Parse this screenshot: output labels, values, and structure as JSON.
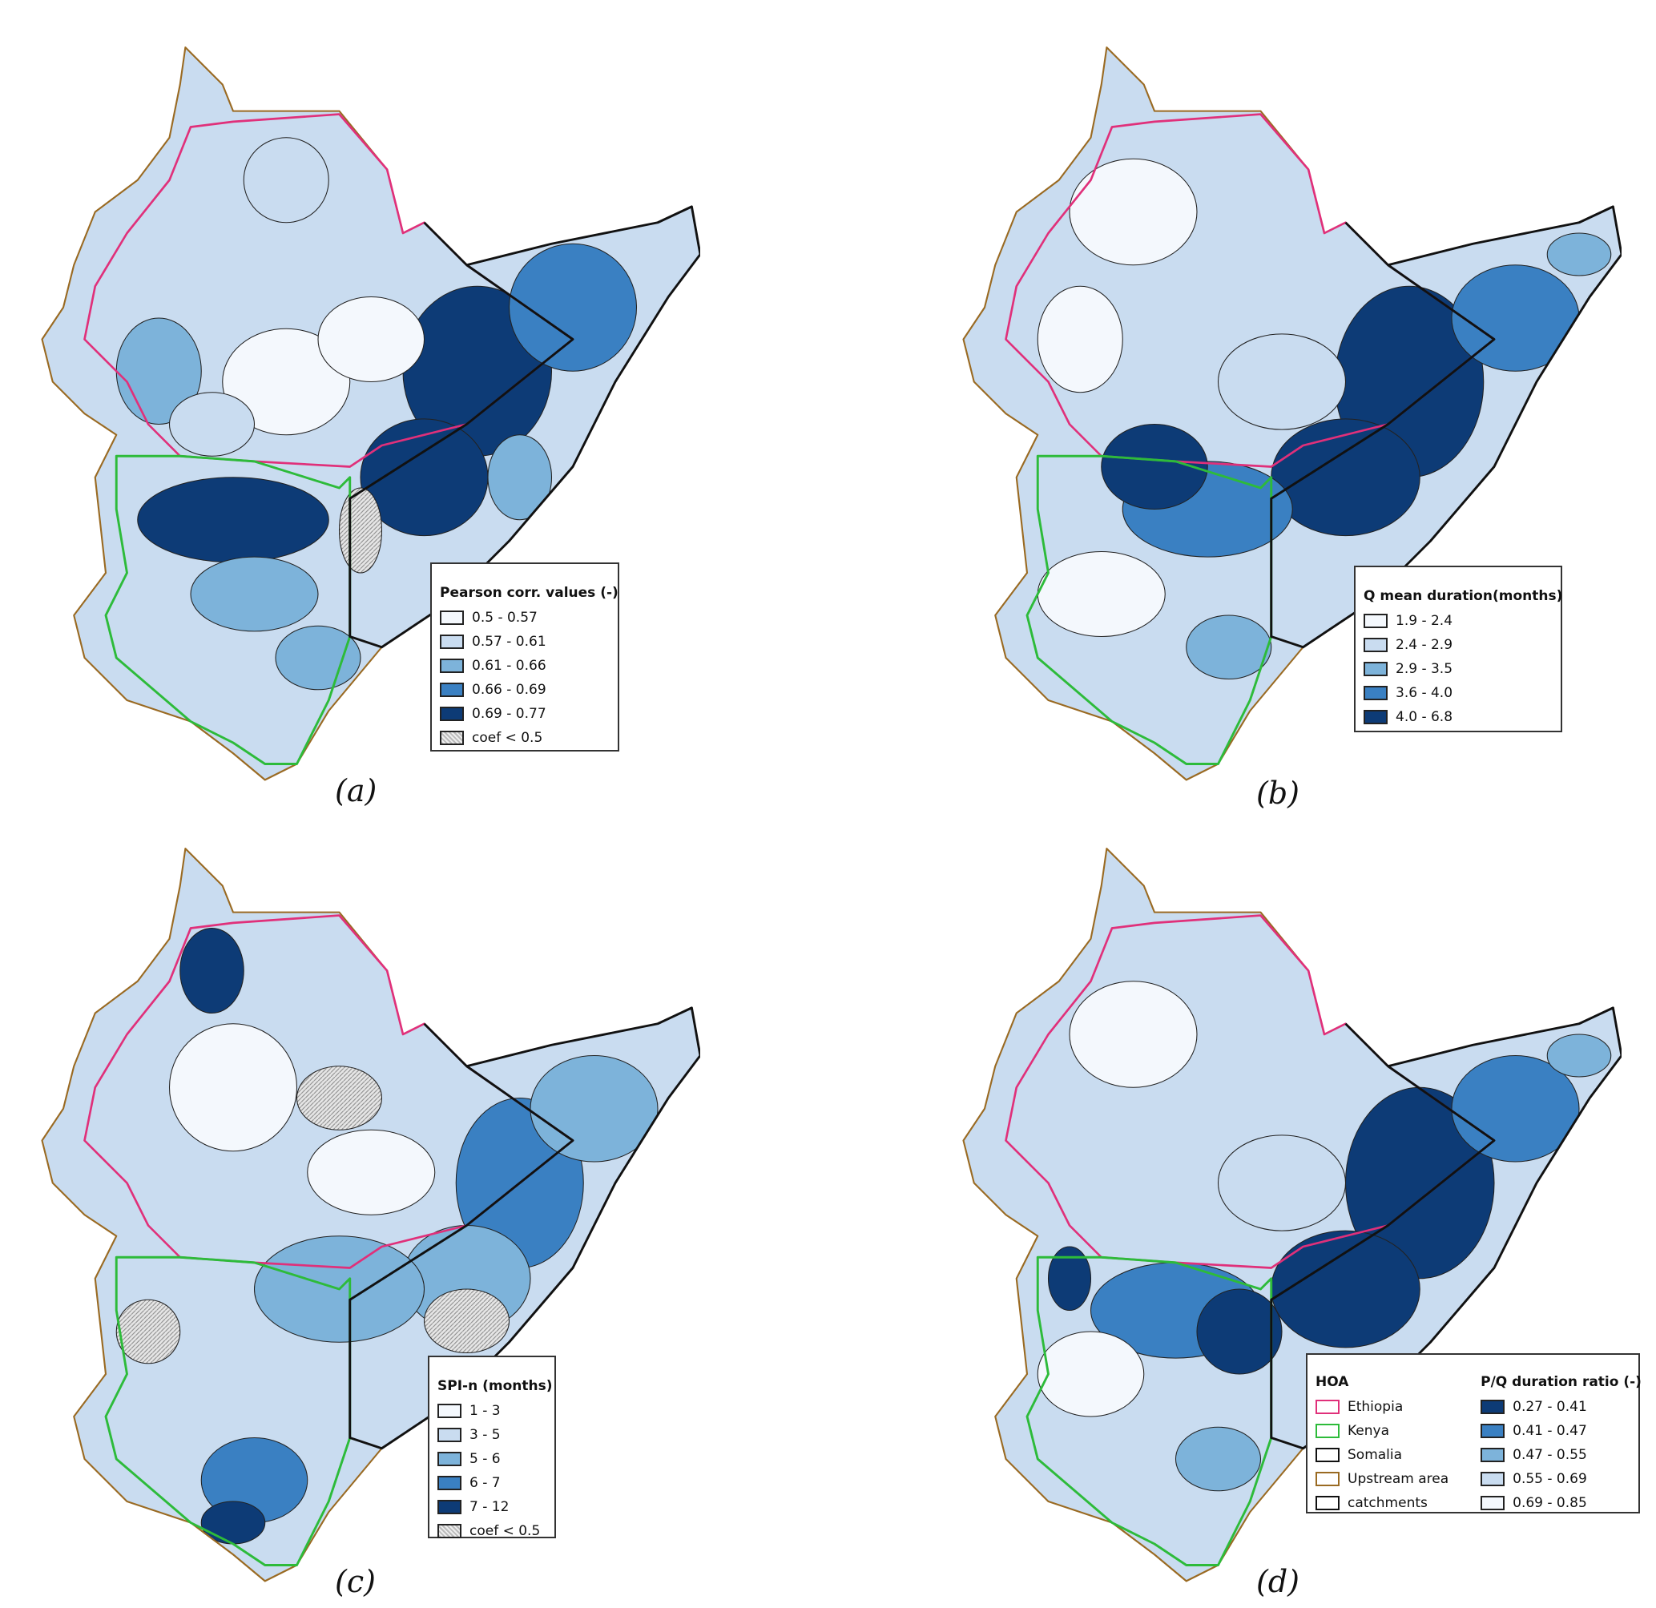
{
  "panels": [
    {
      "caption": "(a)",
      "legend_title": "Pearson corr. values (-)",
      "classes": [
        {
          "label": "0.5 - 0.57",
          "color": "#f4f8fd"
        },
        {
          "label": "0.57 - 0.61",
          "color": "#c9dcf0"
        },
        {
          "label": "0.61 - 0.66",
          "color": "#7db3da"
        },
        {
          "label": "0.66 - 0.69",
          "color": "#3a80c2"
        },
        {
          "label": "0.69 - 0.77",
          "color": "#0d3b76"
        },
        {
          "label": "coef < 0.5",
          "color": "hatched-grey"
        }
      ]
    },
    {
      "caption": "(b)",
      "legend_title": "Q mean duration(months)",
      "classes": [
        {
          "label": "1.9 - 2.4",
          "color": "#f4f8fd"
        },
        {
          "label": "2.4 - 2.9",
          "color": "#c9dcf0"
        },
        {
          "label": "2.9 - 3.5",
          "color": "#7db3da"
        },
        {
          "label": "3.6 - 4.0",
          "color": "#3a80c2"
        },
        {
          "label": "4.0 - 6.8",
          "color": "#0d3b76"
        }
      ]
    },
    {
      "caption": "(c)",
      "legend_title": "SPI-n (months)",
      "classes": [
        {
          "label": "1 - 3",
          "color": "#f4f8fd"
        },
        {
          "label": "3 - 5",
          "color": "#c9dcf0"
        },
        {
          "label": "5 - 6",
          "color": "#7db3da"
        },
        {
          "label": "6 - 7",
          "color": "#3a80c2"
        },
        {
          "label": "7 - 12",
          "color": "#0d3b76"
        },
        {
          "label": "coef < 0.5",
          "color": "hatched-grey"
        }
      ]
    },
    {
      "caption": "(d)",
      "legend_title": "P/Q duration ratio (-)",
      "hoa_title": "HOA",
      "hoa": [
        {
          "label": "Ethiopia",
          "color": "#e0307a"
        },
        {
          "label": "Kenya",
          "color": "#2dbb3a"
        },
        {
          "label": "Somalia",
          "color": "#111111"
        },
        {
          "label": "Upstream area",
          "color": "#9a6a22"
        },
        {
          "label": "catchments",
          "color": "#111111"
        }
      ],
      "classes": [
        {
          "label": "0.27 - 0.41",
          "color": "#0d3b76"
        },
        {
          "label": "0.41 - 0.47",
          "color": "#3a80c2"
        },
        {
          "label": "0.47 - 0.55",
          "color": "#7db3da"
        },
        {
          "label": "0.55 - 0.69",
          "color": "#c9dcf0"
        },
        {
          "label": "0.69 - 0.85",
          "color": "#f4f8fd"
        }
      ]
    }
  ]
}
